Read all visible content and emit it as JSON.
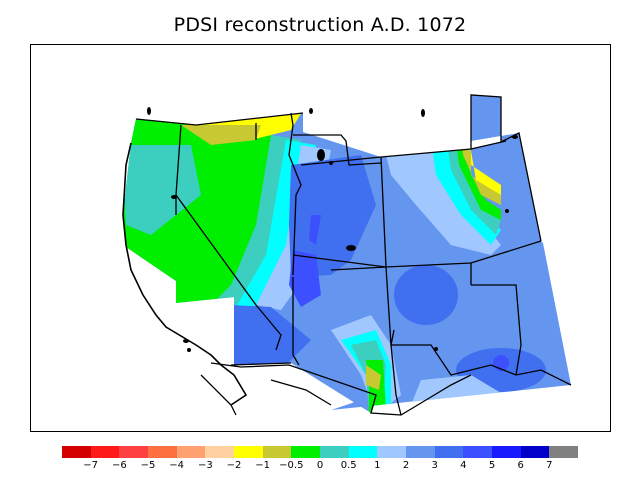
{
  "title": "PDSI reconstruction A.D. 1072",
  "map": {
    "variable": "PDSI",
    "year": "A.D. 1072",
    "region_shown": "western United States",
    "features": [
      "state-boundaries",
      "coastline",
      "lakes",
      "international-border"
    ]
  },
  "legend": {
    "colors": [
      "#d40000",
      "#ff1a1a",
      "#ff4040",
      "#ff7040",
      "#ffa070",
      "#ffd0a0",
      "#ffff00",
      "#c8c832",
      "#00ee00",
      "#3ccfc0",
      "#00ffff",
      "#a0c8ff",
      "#6496f0",
      "#4070f0",
      "#3c50ff",
      "#1a1aff",
      "#0000c8",
      "#808080"
    ],
    "tick_labels": [
      "−7",
      "−6",
      "−5",
      "−4",
      "−3",
      "−2",
      "−1",
      "−0.5",
      "0",
      "0.5",
      "1",
      "2",
      "3",
      "4",
      "5",
      "6",
      "7"
    ]
  }
}
